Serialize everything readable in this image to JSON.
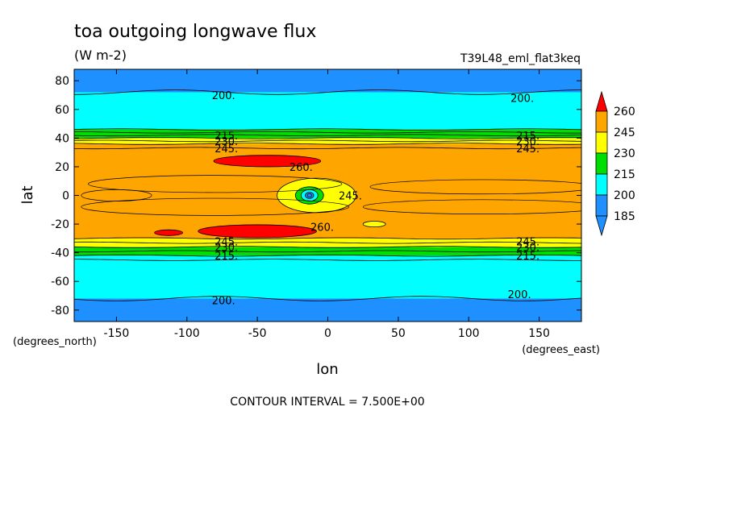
{
  "chart_data": {
    "type": "contour",
    "title": "toa outgoing longwave flux",
    "units": "(W m-2)",
    "dataset": "T39L48_eml_flat3keq",
    "xlabel": "lon",
    "ylabel": "lat",
    "x_units": "(degrees_east)",
    "y_units": "(degrees_north)",
    "xlim": [
      -180,
      180
    ],
    "ylim": [
      -88,
      88
    ],
    "x_ticks": [
      -150,
      -100,
      -50,
      0,
      50,
      100,
      150
    ],
    "y_ticks": [
      80,
      60,
      40,
      20,
      0,
      -20,
      -40,
      -60,
      -80
    ],
    "footer": "CONTOUR INTERVAL = 7.500E+00",
    "contour_interval": 7.5,
    "colorbar": {
      "levels": [
        185,
        200,
        215,
        230,
        245,
        260
      ],
      "colors": [
        "#1e90ff",
        "#00ffff",
        "#00dd00",
        "#ffff00",
        "#ffa500",
        "#ff0000"
      ]
    },
    "zonal_bands": [
      {
        "lat_min": 72,
        "lat_max": 88,
        "range": "185-200"
      },
      {
        "lat_min": 46,
        "lat_max": 72,
        "range": "200-215"
      },
      {
        "lat_min": 40,
        "lat_max": 46,
        "range": "215-230"
      },
      {
        "lat_min": 36,
        "lat_max": 40,
        "range": "230-245"
      },
      {
        "lat_min": -30,
        "lat_max": 36,
        "range": "245-260"
      },
      {
        "lat_min": -36,
        "lat_max": -30,
        "range": "230-245"
      },
      {
        "lat_min": -42,
        "lat_max": -36,
        "range": "215-230"
      },
      {
        "lat_min": -72,
        "lat_max": -42,
        "range": "200-215"
      },
      {
        "lat_min": -88,
        "lat_max": -72,
        "range": "185-200"
      }
    ],
    "contour_labels": [
      {
        "text": "200.",
        "lon": -74,
        "lat": 70
      },
      {
        "text": "200.",
        "lon": 138,
        "lat": 68
      },
      {
        "text": "215.",
        "lon": -72,
        "lat": 42
      },
      {
        "text": "230.",
        "lon": -72,
        "lat": 38
      },
      {
        "text": "245.",
        "lon": -72,
        "lat": 33
      },
      {
        "text": "215.",
        "lon": 142,
        "lat": 42
      },
      {
        "text": "230.",
        "lon": 142,
        "lat": 38
      },
      {
        "text": "245.",
        "lon": 142,
        "lat": 33
      },
      {
        "text": "260.",
        "lon": -19,
        "lat": 20
      },
      {
        "text": "245.",
        "lon": 16,
        "lat": 0
      },
      {
        "text": "260.",
        "lon": -4,
        "lat": -22
      },
      {
        "text": "245.",
        "lon": -72,
        "lat": -32
      },
      {
        "text": "230.",
        "lon": -72,
        "lat": -36
      },
      {
        "text": "215.",
        "lon": -72,
        "lat": -42
      },
      {
        "text": "245.",
        "lon": 142,
        "lat": -32
      },
      {
        "text": "230.",
        "lon": 142,
        "lat": -36
      },
      {
        "text": "215.",
        "lon": 142,
        "lat": -42
      },
      {
        "text": "200.",
        "lon": -74,
        "lat": -73
      },
      {
        "text": "200.",
        "lon": 136,
        "lat": -69
      }
    ]
  }
}
